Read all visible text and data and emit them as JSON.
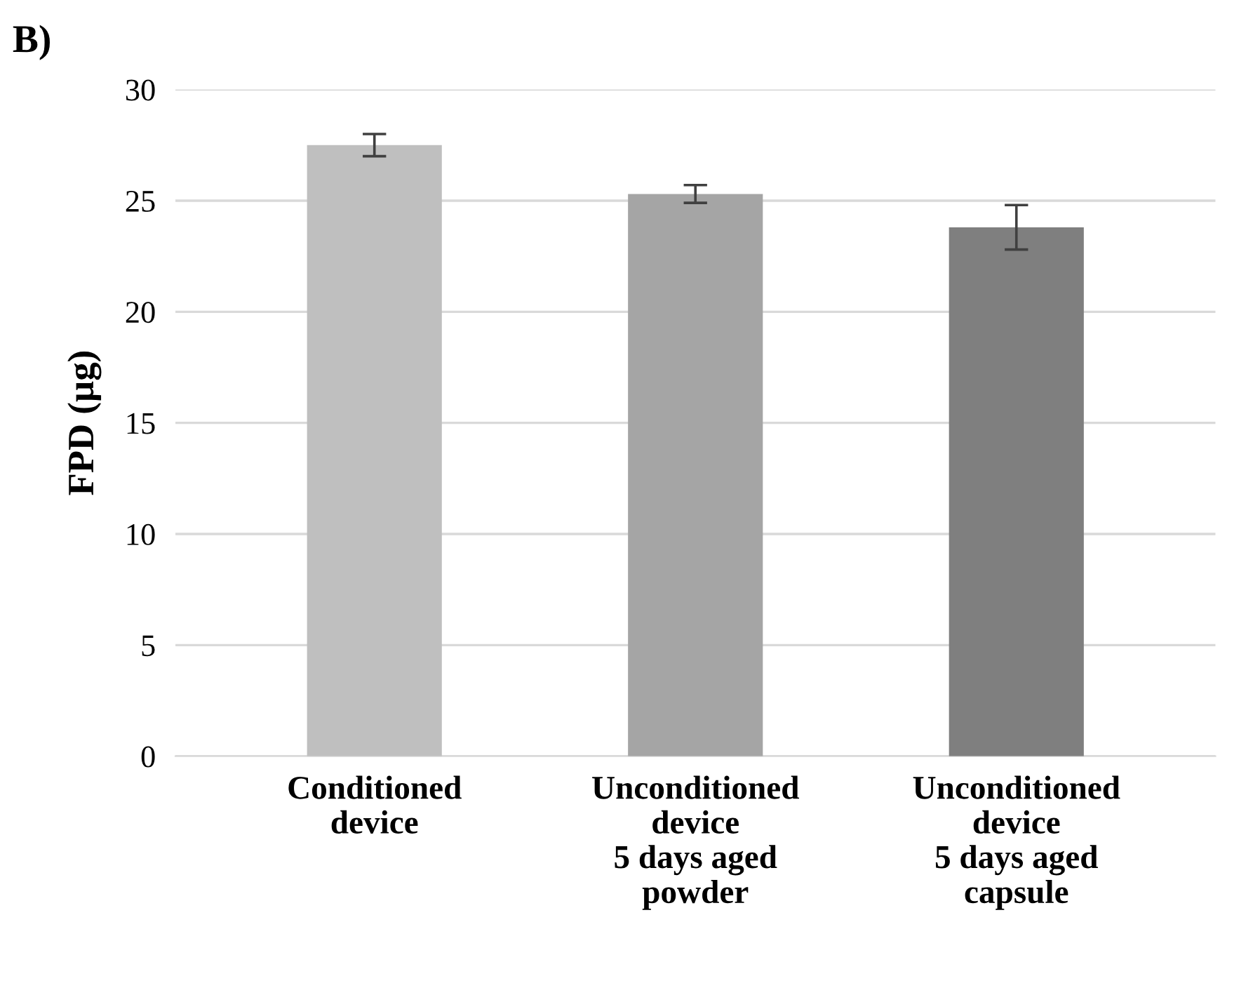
{
  "chart_data": {
    "type": "bar",
    "title": "B)",
    "ylabel": "FPD (µg)",
    "categories": [
      "Conditioned\ndevice",
      "Unconditioned\ndevice\n5 days aged\npowder",
      "Unconditioned\ndevice\n5 days aged\ncapsule"
    ],
    "values": [
      27.5,
      25.3,
      23.8
    ],
    "colors": [
      "#bfbfbf",
      "#a5a5a5",
      "#7f7f7f"
    ],
    "errors": [
      0.5,
      0.4,
      1.0
    ],
    "ylim": [
      0,
      30
    ],
    "yticks": [
      0,
      5,
      10,
      15,
      20,
      25,
      30
    ],
    "grid": "y",
    "legend": false
  }
}
